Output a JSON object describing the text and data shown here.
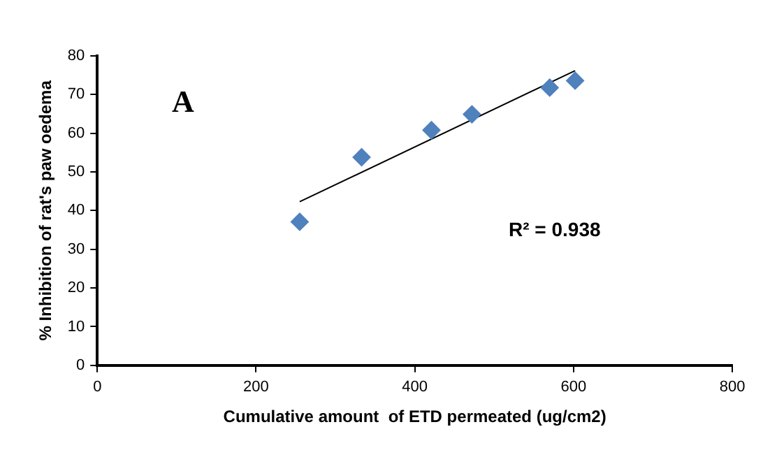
{
  "chart_data": {
    "type": "scatter",
    "xlabel": "Cumulative amount  of ETD permeated (ug/cm2)",
    "ylabel": "% Inhibition of rat's paw oedema",
    "x": [
      255,
      333,
      421,
      472,
      570,
      602
    ],
    "series": [
      {
        "type": "scatter",
        "color": "#4f81bd",
        "marker": "diamond",
        "values": [
          37.1,
          53.8,
          60.8,
          64.9,
          71.8,
          73.6
        ]
      },
      {
        "type": "line",
        "color": "#000000",
        "marker": "none",
        "x": [
          255,
          602
        ],
        "values": [
          42.3,
          76.2
        ]
      }
    ],
    "xlim": [
      0,
      800
    ],
    "xticks": [
      0,
      200,
      400,
      600,
      800
    ],
    "ylim": [
      0,
      80
    ],
    "yticks": [
      0,
      10,
      20,
      30,
      40,
      50,
      60,
      70,
      80
    ],
    "grid": false,
    "legend": false,
    "annotations": [
      "A",
      "R² = 0.938"
    ]
  }
}
